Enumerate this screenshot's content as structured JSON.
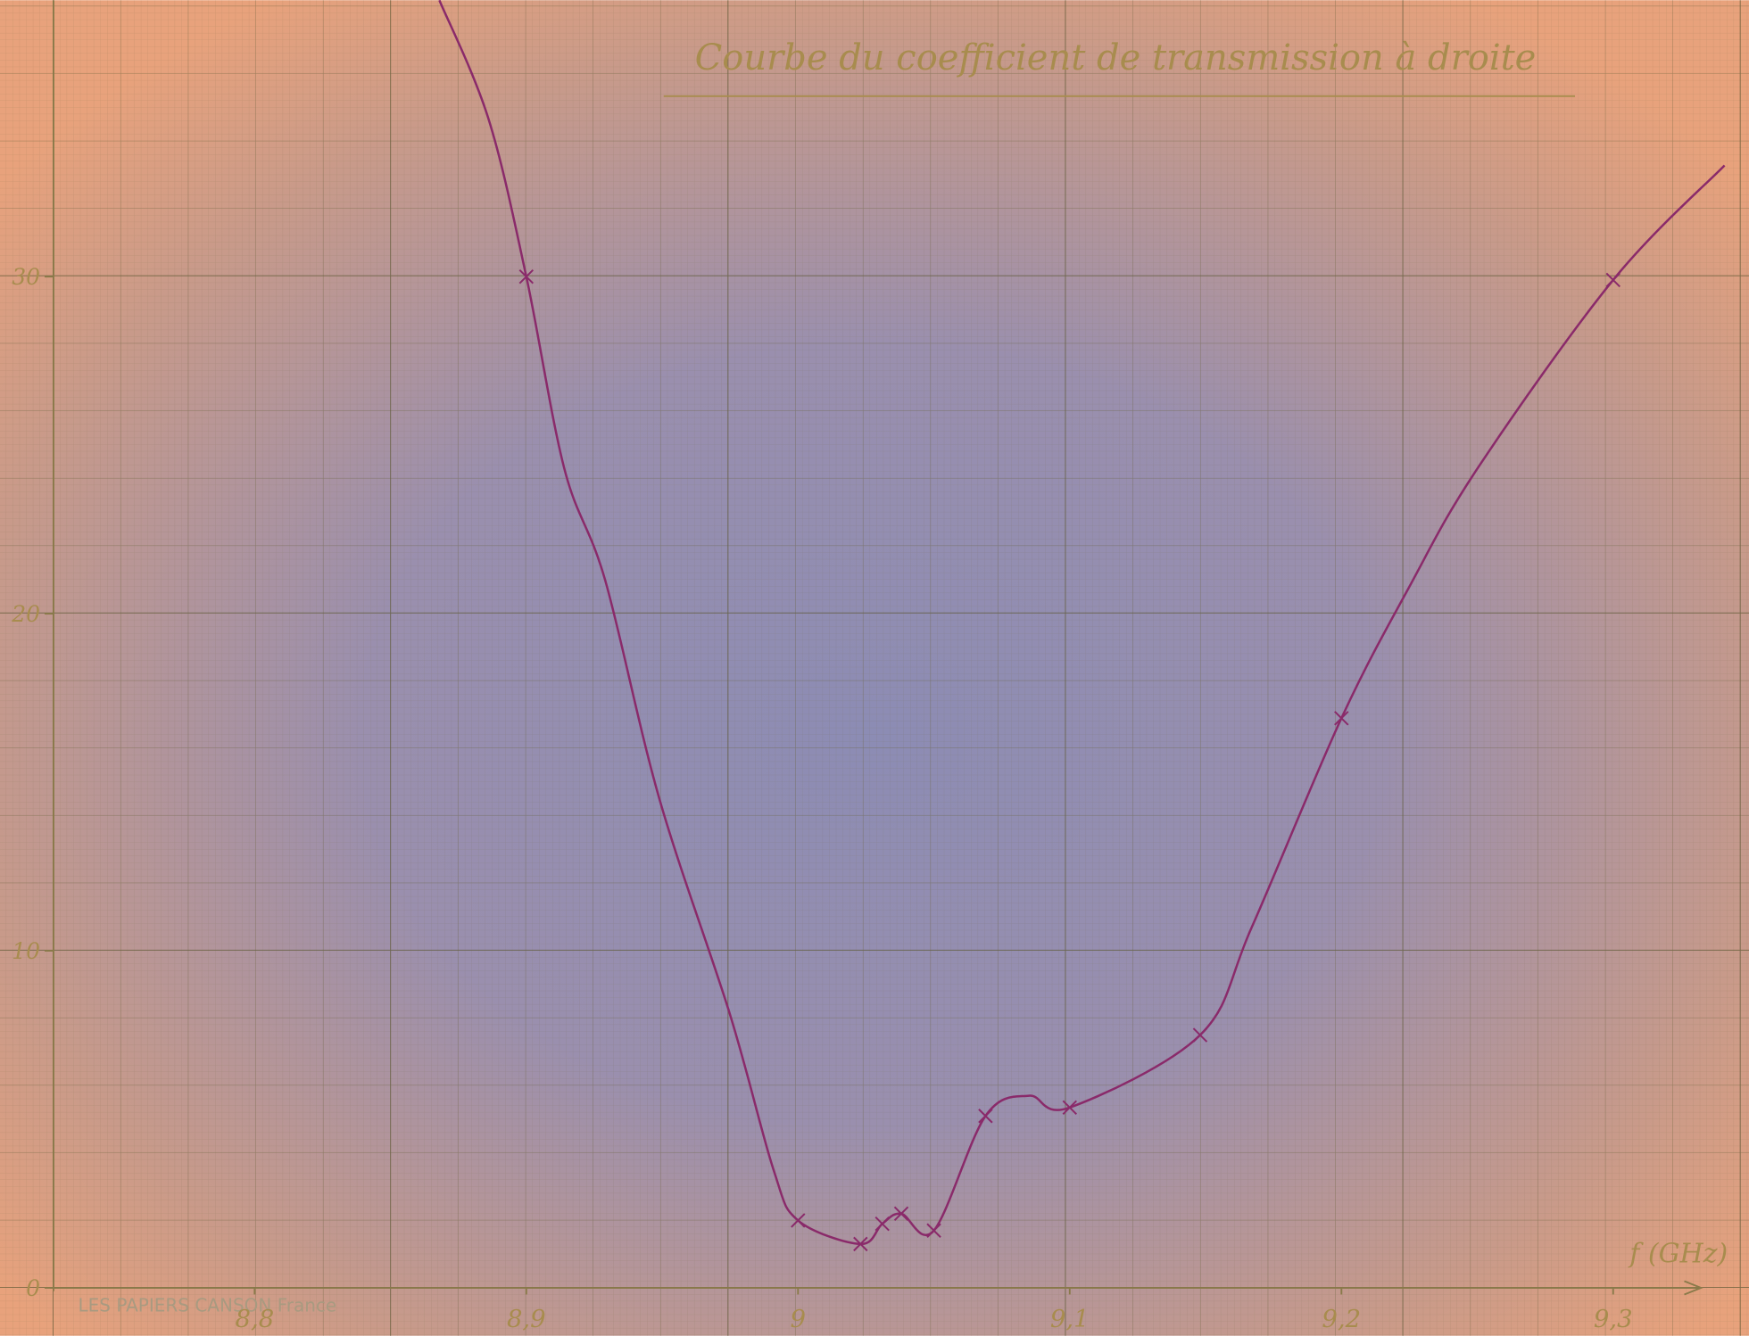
{
  "chart_data": {
    "type": "line",
    "title": "Courbe du coefficient de transmission à droite",
    "x_label": "f (GHz)",
    "paper_brand": "LES PAPIERS CANSON  France",
    "x": [
      8.868,
      8.886,
      8.9,
      8.914,
      8.929,
      8.949,
      8.975,
      8.991,
      9.0,
      9.023,
      9.031,
      9.038,
      9.05,
      9.069,
      9.085,
      9.1,
      9.148,
      9.167,
      9.2,
      9.225,
      9.25,
      9.3,
      9.341
    ],
    "values": [
      38.2,
      34.7,
      30,
      24.3,
      21,
      14.5,
      8.1,
      3.5,
      2,
      1.3,
      1.9,
      2.2,
      1.7,
      5.1,
      5.7,
      5.35,
      7.5,
      10.7,
      16.9,
      20.8,
      24.3,
      29.9,
      33.3
    ],
    "color": "#8a2a6a",
    "points": {
      "x": [
        8.9,
        9.0,
        9.023,
        9.031,
        9.038,
        9.05,
        9.069,
        9.1,
        9.148,
        9.2,
        9.3
      ],
      "values": [
        30,
        2,
        1.3,
        1.9,
        2.2,
        1.7,
        5.1,
        5.35,
        7.5,
        16.9,
        29.9
      ]
    },
    "xlim": [
      8.726,
      9.35
    ],
    "ylim": [
      0,
      38.2
    ],
    "xticks": [
      {
        "value": 8.8,
        "label": "8,8"
      },
      {
        "value": 8.9,
        "label": "8,9"
      },
      9,
      {
        "value": 9.1,
        "label": "9,1"
      },
      {
        "value": 9.2,
        "label": "9,2"
      },
      {
        "value": 9.3,
        "label": "9,3"
      }
    ],
    "yticks": [
      0,
      10,
      20,
      30
    ]
  }
}
